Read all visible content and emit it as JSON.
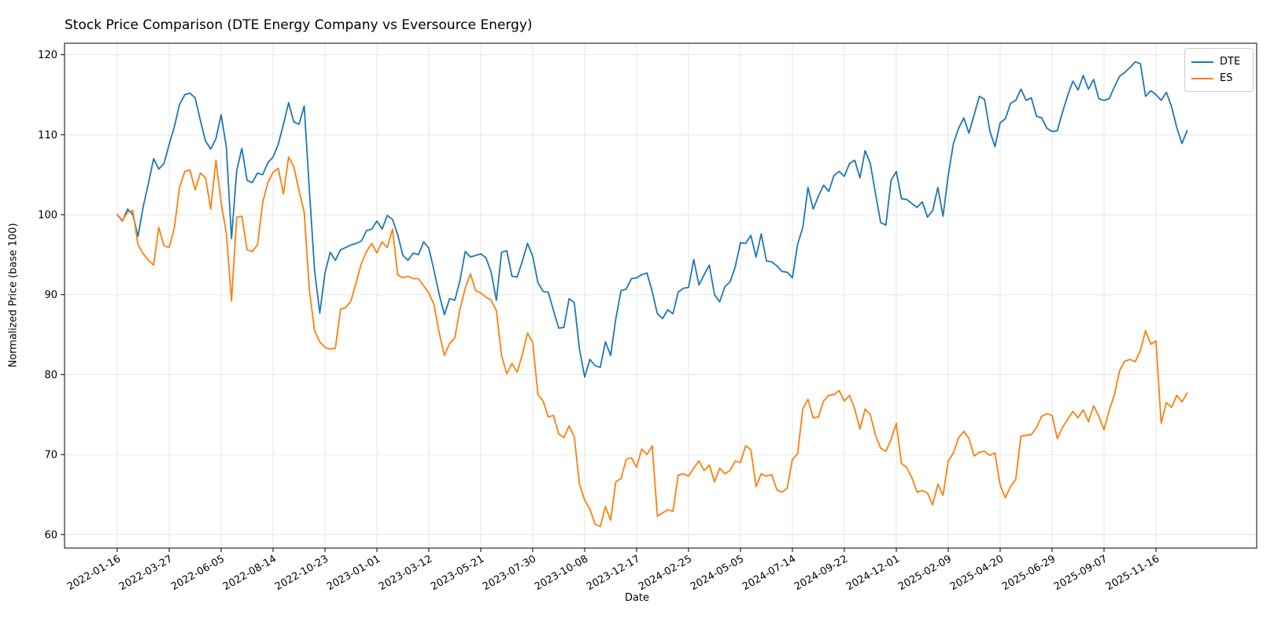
{
  "title": "Stock Price Comparison (DTE Energy Company vs Eversource Energy)",
  "axes": {
    "xlabel": "Date",
    "ylabel": "Normalized Price (base 100)"
  },
  "legend": {
    "entries": [
      {
        "label": "DTE",
        "color": "#1f77b4"
      },
      {
        "label": "ES",
        "color": "#ff7f0e"
      }
    ]
  },
  "chart_data": {
    "type": "line",
    "title": "Stock Price Comparison (DTE Energy Company vs Eversource Energy)",
    "xlabel": "Date",
    "ylabel": "Normalized Price (base 100)",
    "grid": true,
    "legend_position": "upper right",
    "x_interval": "weekly",
    "x_start_date": "2022-01-16",
    "x_tick_every_n_points": 10,
    "x_tick_labels": [
      "2022-01-16",
      "2022-03-27",
      "2022-06-05",
      "2022-08-14",
      "2022-10-23",
      "2023-01-01",
      "2023-03-12",
      "2023-05-21",
      "2023-07-30",
      "2023-10-08",
      "2023-12-17",
      "2024-02-25",
      "2024-05-05",
      "2024-07-14",
      "2024-09-22",
      "2024-12-01",
      "2025-02-09",
      "2025-04-20",
      "2025-06-29",
      "2025-09-07",
      "2025-11-16"
    ],
    "x_tick_rotation_deg": 30,
    "y_ticks": [
      60,
      70,
      80,
      90,
      100,
      110,
      120
    ],
    "ylim": [
      58.0,
      122.2
    ],
    "series": [
      {
        "name": "DTE",
        "color": "#1f77b4",
        "values": [
          100.0,
          99.2,
          100.7,
          100.0,
          97.3,
          101.0,
          103.9,
          107.0,
          105.7,
          106.4,
          108.8,
          111.0,
          113.8,
          115.0,
          115.2,
          114.6,
          111.8,
          109.2,
          108.2,
          109.5,
          112.5,
          108.5,
          97.0,
          105.5,
          108.3,
          104.3,
          104.0,
          105.2,
          105.0,
          106.5,
          107.2,
          108.8,
          111.3,
          114.0,
          111.6,
          111.3,
          113.6,
          103.0,
          93.0,
          87.7,
          92.7,
          95.3,
          94.3,
          95.6,
          95.9,
          96.2,
          96.4,
          96.7,
          98.0,
          98.2,
          99.2,
          98.2,
          99.9,
          99.4,
          97.5,
          94.9,
          94.3,
          95.2,
          95.0,
          96.6,
          95.8,
          93.0,
          90.0,
          87.5,
          89.5,
          89.3,
          91.8,
          95.4,
          94.7,
          94.9,
          95.1,
          94.6,
          92.8,
          89.3,
          95.3,
          95.5,
          92.3,
          92.2,
          94.2,
          96.4,
          94.8,
          91.5,
          90.4,
          90.3,
          88.0,
          85.8,
          85.9,
          89.5,
          89.0,
          83.2,
          79.7,
          81.9,
          81.1,
          80.9,
          84.1,
          82.4,
          87.0,
          90.5,
          90.7,
          92.0,
          92.1,
          92.5,
          92.7,
          90.4,
          87.6,
          87.0,
          88.1,
          87.6,
          90.3,
          90.8,
          90.9,
          94.4,
          91.2,
          92.5,
          93.7,
          90.0,
          89.1,
          91.0,
          91.6,
          93.5,
          96.5,
          96.4,
          97.4,
          94.7,
          97.6,
          94.2,
          94.1,
          93.6,
          92.9,
          92.8,
          92.1,
          96.3,
          98.4,
          103.4,
          100.7,
          102.3,
          103.7,
          102.9,
          104.9,
          105.4,
          104.8,
          106.4,
          106.8,
          104.6,
          108.0,
          106.4,
          102.6,
          99.0,
          98.7,
          104.3,
          105.4,
          102.0,
          101.9,
          101.4,
          100.9,
          101.6,
          99.7,
          100.5,
          103.4,
          99.8,
          104.9,
          108.9,
          110.8,
          112.1,
          110.2,
          112.5,
          114.8,
          114.4,
          110.5,
          108.5,
          111.5,
          112.0,
          113.9,
          114.3,
          115.7,
          114.3,
          114.6,
          112.3,
          112.1,
          110.8,
          110.4,
          110.5,
          112.8,
          114.9,
          116.7,
          115.6,
          117.4,
          115.7,
          116.9,
          114.5,
          114.3,
          114.5,
          116.0,
          117.3,
          117.8,
          118.4,
          119.1,
          118.9,
          114.8,
          115.5,
          115.0,
          114.3,
          115.3,
          113.5,
          110.9,
          108.9,
          110.5
        ]
      },
      {
        "name": "ES",
        "color": "#ff7f0e",
        "values": [
          100.0,
          99.3,
          100.3,
          100.5,
          96.2,
          95.1,
          94.3,
          93.7,
          98.4,
          96.1,
          95.9,
          98.4,
          103.4,
          105.4,
          105.6,
          103.1,
          105.2,
          104.6,
          100.7,
          106.8,
          101.5,
          97.7,
          89.2,
          99.7,
          99.8,
          95.6,
          95.4,
          96.2,
          101.5,
          104.0,
          105.3,
          105.8,
          102.6,
          107.2,
          106.0,
          103.0,
          100.3,
          90.5,
          85.5,
          84.1,
          83.4,
          83.2,
          83.3,
          88.2,
          88.4,
          89.2,
          91.5,
          93.9,
          95.4,
          96.4,
          95.2,
          96.6,
          95.9,
          98.2,
          92.5,
          92.1,
          92.3,
          92.0,
          92.0,
          91.1,
          90.2,
          88.7,
          85.2,
          82.4,
          83.9,
          84.6,
          88.2,
          90.8,
          92.6,
          90.5,
          90.2,
          89.7,
          89.3,
          88.0,
          82.4,
          80.1,
          81.4,
          80.3,
          82.5,
          85.2,
          84.0,
          77.5,
          76.7,
          74.7,
          74.9,
          72.6,
          72.1,
          73.6,
          72.2,
          66.3,
          64.3,
          63.2,
          61.3,
          61.0,
          63.5,
          61.8,
          66.6,
          67.0,
          69.4,
          69.6,
          68.4,
          70.7,
          70.0,
          71.1,
          62.3,
          62.7,
          63.1,
          62.9,
          67.4,
          67.6,
          67.3,
          68.3,
          69.2,
          68.0,
          68.7,
          66.6,
          68.3,
          67.6,
          68.0,
          69.2,
          69.0,
          71.1,
          70.6,
          66.0,
          67.6,
          67.3,
          67.5,
          65.6,
          65.3,
          65.8,
          69.4,
          70.1,
          75.7,
          76.9,
          74.6,
          74.7,
          76.7,
          77.4,
          77.5,
          78.0,
          76.7,
          77.4,
          75.7,
          73.2,
          75.7,
          75.0,
          72.4,
          70.8,
          70.4,
          71.9,
          73.9,
          68.9,
          68.4,
          67.1,
          65.3,
          65.5,
          65.2,
          63.7,
          66.3,
          64.9,
          69.2,
          70.2,
          72.1,
          72.9,
          72.0,
          69.8,
          70.3,
          70.4,
          69.9,
          70.2,
          66.2,
          64.6,
          66.0,
          66.9,
          72.3,
          72.4,
          72.5,
          73.4,
          74.8,
          75.1,
          74.9,
          72.0,
          73.4,
          74.4,
          75.4,
          74.6,
          75.6,
          74.1,
          76.1,
          74.8,
          73.1,
          75.5,
          77.5,
          80.5,
          81.7,
          81.9,
          81.6,
          83.0,
          85.5,
          83.8,
          84.2,
          73.9,
          76.5,
          75.9,
          77.4,
          76.6,
          77.7
        ]
      }
    ]
  }
}
